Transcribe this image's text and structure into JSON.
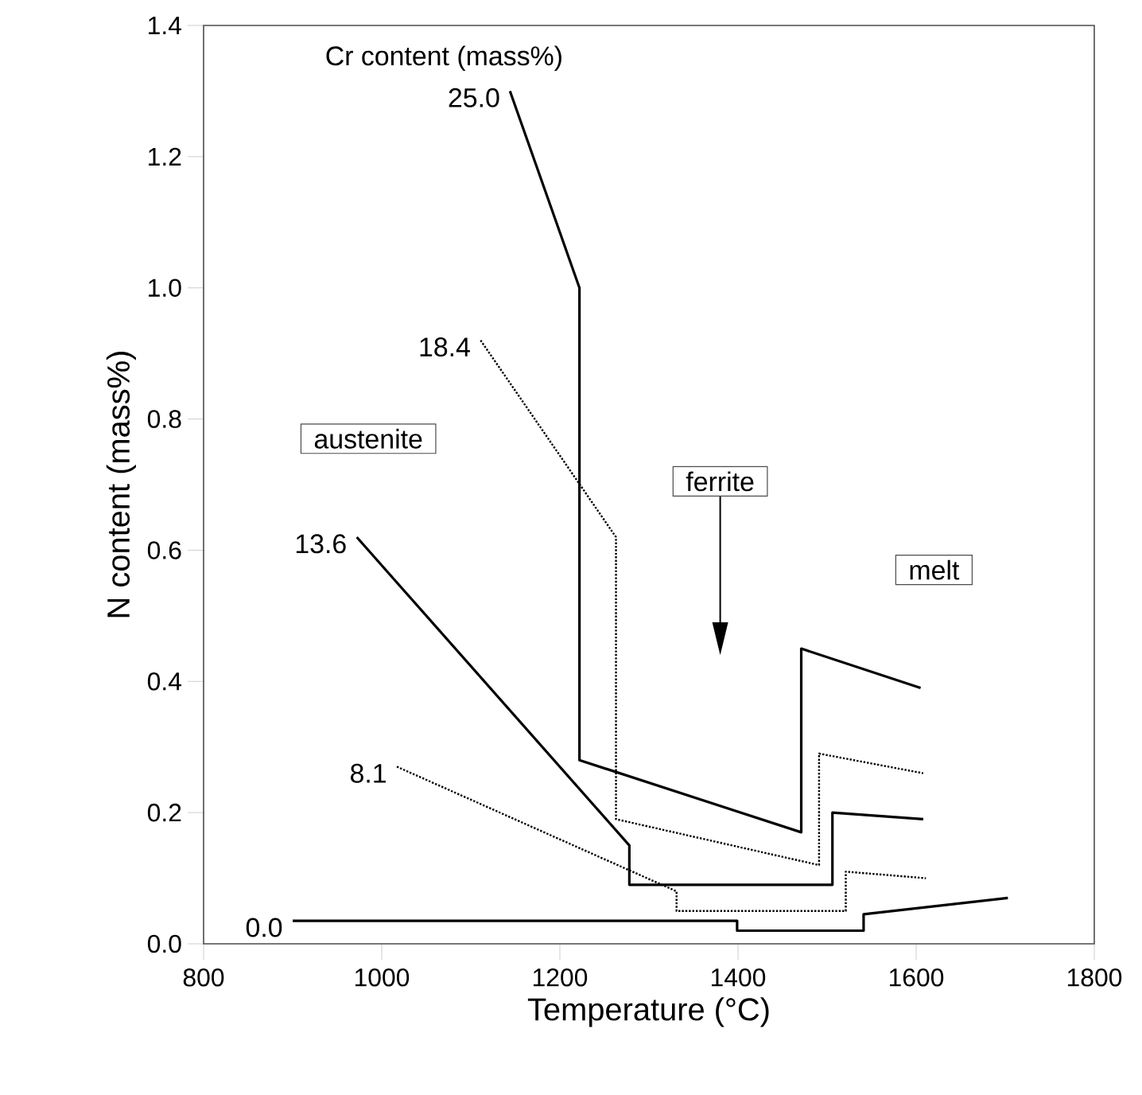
{
  "chart_data": {
    "type": "line",
    "xlabel": "Temperature (°C)",
    "ylabel": "N content (mass%)",
    "legend_title": "Cr content (mass%)",
    "xlim": [
      800,
      1800
    ],
    "ylim": [
      0,
      1.4
    ],
    "xticks": [
      800,
      1000,
      1200,
      1400,
      1600,
      1800
    ],
    "yticks": [
      {
        "value": 0,
        "label": "0.0"
      },
      {
        "value": 0.2,
        "label": "0.2"
      },
      {
        "value": 0.4,
        "label": "0.4"
      },
      {
        "value": 0.6,
        "label": "0.6"
      },
      {
        "value": 0.8,
        "label": "0.8"
      },
      {
        "value": 1.0,
        "label": "1.0"
      },
      {
        "value": 1.2,
        "label": "1.2"
      },
      {
        "value": 1.4,
        "label": "1.4"
      }
    ],
    "grid": false,
    "legend": false,
    "marker": "none",
    "annotations": [
      "austenite",
      "ferrite",
      "melt"
    ],
    "series": [
      {
        "name": "25.0",
        "color": "#000000",
        "line_style": "solid",
        "x": [
          1144,
          1222,
          1222,
          1471,
          1471,
          1605
        ],
        "values": [
          1.3,
          1.0,
          0.28,
          0.17,
          0.45,
          0.39
        ]
      },
      {
        "name": "18.4",
        "color": "#000000",
        "line_style": "dotted",
        "x": [
          1111,
          1263,
          1263,
          1491,
          1491,
          1608
        ],
        "values": [
          0.92,
          0.62,
          0.19,
          0.12,
          0.29,
          0.26
        ]
      },
      {
        "name": "13.6",
        "color": "#000000",
        "line_style": "solid",
        "x": [
          972,
          1278,
          1278,
          1506,
          1506,
          1608
        ],
        "values": [
          0.62,
          0.15,
          0.09,
          0.09,
          0.2,
          0.19
        ]
      },
      {
        "name": "8.1",
        "color": "#000000",
        "line_style": "dotted",
        "x": [
          1017,
          1331,
          1331,
          1521,
          1521,
          1611
        ],
        "values": [
          0.27,
          0.08,
          0.05,
          0.05,
          0.11,
          0.1
        ]
      },
      {
        "name": "0.0",
        "color": "#000000",
        "line_style": "solid",
        "x": [
          900,
          1399,
          1399,
          1541,
          1541,
          1703
        ],
        "values": [
          0.035,
          0.035,
          0.02,
          0.02,
          0.045,
          0.07
        ]
      }
    ]
  }
}
